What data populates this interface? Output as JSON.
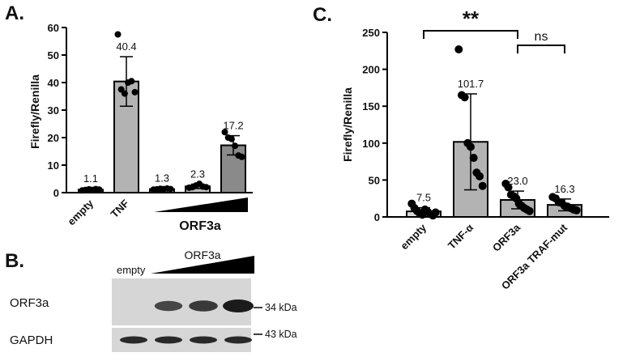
{
  "panel_a": {
    "letter": "A.",
    "ylabel": "Firefly/Renilla",
    "group_label": "ORF3a"
  },
  "panel_b": {
    "letter": "B.",
    "empty_label": "empty",
    "group_label": "ORF3a",
    "rows": [
      {
        "label": "ORF3a",
        "marker": "34 kDa",
        "band_intensity": [
          0.0,
          0.55,
          0.7,
          1.0
        ]
      },
      {
        "label": "GAPDH",
        "marker": "43 kDa",
        "band_intensity": [
          0.85,
          0.85,
          0.85,
          0.85
        ]
      }
    ]
  },
  "panel_c": {
    "letter": "C.",
    "ylabel": "Firefly/Renilla",
    "significance": [
      {
        "label": "**",
        "from": 0,
        "to": 2
      },
      {
        "label": "ns",
        "from": 2,
        "to": 3
      }
    ]
  },
  "chart_data": [
    {
      "id": "A",
      "type": "bar",
      "ylabel": "Firefly/Renilla",
      "ylim": [
        0,
        60
      ],
      "yticks": [
        0,
        10,
        20,
        30,
        40,
        50,
        60
      ],
      "categories": [
        "empty",
        "TNF",
        "",
        "",
        ""
      ],
      "category_group": {
        "label": "ORF3a",
        "members": [
          2,
          3,
          4
        ],
        "ramp": "increasing"
      },
      "values": [
        1.1,
        40.4,
        1.3,
        2.3,
        17.2
      ],
      "value_labels": [
        "1.1",
        "40.4",
        "1.3",
        "2.3",
        "17.2"
      ],
      "error_sd": [
        0.3,
        9.0,
        0.3,
        0.8,
        3.5
      ],
      "bar_colors": [
        "#d9d9d9",
        "#b3b3b3",
        "#d9d9d9",
        "#c0c0c0",
        "#8a8a8a"
      ],
      "points": [
        [
          0.8,
          1.0,
          1.2,
          1.0,
          1.3,
          1.1
        ],
        [
          57.5,
          37.5,
          36.0,
          40.0,
          40.5,
          36.5
        ],
        [
          1.1,
          1.2,
          1.4,
          1.3,
          1.5,
          1.3
        ],
        [
          1.8,
          2.0,
          2.6,
          3.2,
          2.2,
          2.0
        ],
        [
          22.0,
          20.0,
          19.5,
          17.0,
          13.5,
          13.0
        ]
      ]
    },
    {
      "id": "C",
      "type": "bar",
      "ylabel": "Firefly/Renilla",
      "ylim": [
        0,
        250
      ],
      "yticks": [
        0,
        50,
        100,
        150,
        200,
        250
      ],
      "categories": [
        "empty",
        "TNF-α",
        "ORF3a",
        "ORF3a TRAF-mut"
      ],
      "values": [
        7.5,
        101.7,
        23.0,
        16.3
      ],
      "value_labels": [
        "7.5",
        "101.7",
        "23.0",
        "16.3"
      ],
      "error_sd": [
        5.0,
        65.0,
        12.0,
        8.0
      ],
      "bar_colors": [
        "#d9d9d9",
        "#b3b3b3",
        "#b3b3b3",
        "#b3b3b3"
      ],
      "points": [
        [
          18,
          12,
          8,
          5,
          3,
          10,
          7,
          4,
          2,
          6
        ],
        [
          227,
          165,
          162,
          100,
          95,
          80,
          60,
          55,
          42
        ],
        [
          45,
          40,
          30,
          28,
          25,
          18,
          15,
          12,
          10,
          8
        ],
        [
          27,
          25,
          20,
          19,
          15,
          14,
          12,
          10,
          9
        ]
      ]
    }
  ]
}
